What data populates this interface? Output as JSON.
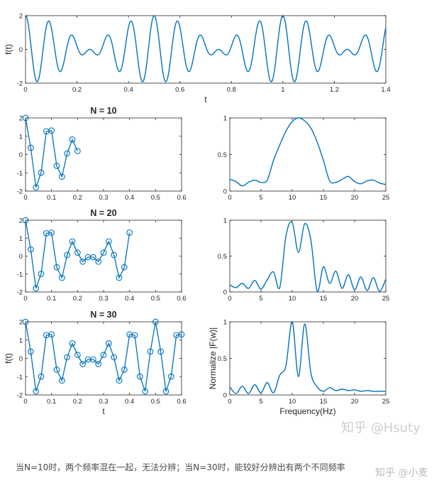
{
  "line_color": "#0072bd",
  "caption": "当N=10时，两个频率混在一起，无法分辨；当N=30时，能较好分辨出有两个不同频率",
  "watermarks": {
    "main": "知乎 @Hsuty",
    "corner": "知乎 @小麦"
  },
  "chart_data": [
    {
      "id": "signal",
      "type": "line",
      "xlabel": "t",
      "ylabel": "f(t)",
      "xlim": [
        0,
        1.4
      ],
      "ylim": [
        -2,
        2
      ],
      "xticks": [
        0,
        0.2,
        0.4,
        0.6,
        0.8,
        1,
        1.2,
        1.4
      ],
      "yticks": [
        -2,
        0,
        2
      ],
      "function": "cos(2*pi*10*t)+cos(2*pi*12*t)",
      "components_hz": [
        10,
        12
      ]
    },
    {
      "id": "samples-n10",
      "type": "line",
      "title": "N = 10",
      "xlim": [
        0,
        0.6
      ],
      "ylim": [
        -2,
        2
      ],
      "xticks": [
        0,
        0.1,
        0.2,
        0.3,
        0.4,
        0.5,
        0.6
      ],
      "yticks": [
        -2,
        -1,
        0,
        1,
        2
      ],
      "x": [
        0,
        0.02,
        0.04,
        0.06,
        0.08,
        0.1,
        0.12,
        0.14,
        0.16,
        0.18,
        0.2
      ],
      "y": [
        2.0,
        0.37,
        -1.8,
        -0.99,
        1.27,
        1.31,
        -0.62,
        -1.21,
        0.06,
        0.82,
        0.19
      ]
    },
    {
      "id": "spectrum-n10",
      "type": "line",
      "xlim": [
        0,
        25
      ],
      "ylim": [
        0,
        1
      ],
      "xticks": [
        0,
        5,
        10,
        15,
        20,
        25
      ],
      "yticks": [
        0,
        0.5,
        1
      ],
      "x": [
        0,
        1,
        2,
        3,
        4,
        5,
        6,
        7,
        8,
        9,
        10,
        11,
        12,
        13,
        14,
        15,
        16,
        17,
        18,
        19,
        20,
        21,
        22,
        23,
        24,
        25
      ],
      "y": [
        0.16,
        0.13,
        0.07,
        0.12,
        0.15,
        0.12,
        0.15,
        0.42,
        0.63,
        0.82,
        0.95,
        1.0,
        0.96,
        0.86,
        0.67,
        0.42,
        0.14,
        0.12,
        0.16,
        0.2,
        0.13,
        0.1,
        0.14,
        0.15,
        0.11,
        0.09
      ]
    },
    {
      "id": "samples-n20",
      "type": "line",
      "title": "N = 20",
      "xlim": [
        0,
        0.6
      ],
      "ylim": [
        -2,
        2
      ],
      "xticks": [
        0,
        0.1,
        0.2,
        0.3,
        0.4,
        0.5,
        0.6
      ],
      "yticks": [
        -2,
        -1,
        0,
        1,
        2
      ],
      "x": [
        0,
        0.02,
        0.04,
        0.06,
        0.08,
        0.1,
        0.12,
        0.14,
        0.16,
        0.18,
        0.2,
        0.22,
        0.24,
        0.26,
        0.28,
        0.3,
        0.32,
        0.34,
        0.36,
        0.38,
        0.4
      ],
      "y": [
        2.0,
        0.37,
        -1.8,
        -0.99,
        1.27,
        1.31,
        -0.62,
        -1.21,
        0.06,
        0.82,
        0.19,
        -0.31,
        -0.06,
        -0.06,
        -0.31,
        0.19,
        0.82,
        0.06,
        -1.21,
        -0.62,
        1.31
      ]
    },
    {
      "id": "spectrum-n20",
      "type": "line",
      "xlim": [
        0,
        25
      ],
      "ylim": [
        0,
        1
      ],
      "xticks": [
        0,
        5,
        10,
        15,
        20,
        25
      ],
      "yticks": [
        0,
        0.5,
        1
      ],
      "x": [
        0,
        1,
        2,
        3,
        4,
        5,
        6,
        7,
        8,
        9,
        10,
        11,
        12,
        13,
        14,
        15,
        16,
        17,
        18,
        19,
        20,
        21,
        22,
        23,
        24,
        25
      ],
      "y": [
        0.1,
        0.06,
        0.12,
        0.05,
        0.16,
        0.04,
        0.17,
        0.28,
        0.06,
        0.78,
        0.97,
        0.55,
        0.95,
        0.72,
        0.01,
        0.35,
        0.12,
        0.29,
        0.05,
        0.24,
        0.03,
        0.21,
        0.02,
        0.2,
        0.01,
        0.18
      ]
    },
    {
      "id": "samples-n30",
      "type": "line",
      "title": "N = 30",
      "xlabel": "t",
      "ylabel": "f(t)",
      "xlim": [
        0,
        0.6
      ],
      "ylim": [
        -2,
        2
      ],
      "xticks": [
        0,
        0.1,
        0.2,
        0.3,
        0.4,
        0.5,
        0.6
      ],
      "yticks": [
        -2,
        -1,
        0,
        1,
        2
      ],
      "x": [
        0,
        0.02,
        0.04,
        0.06,
        0.08,
        0.1,
        0.12,
        0.14,
        0.16,
        0.18,
        0.2,
        0.22,
        0.24,
        0.26,
        0.28,
        0.3,
        0.32,
        0.34,
        0.36,
        0.38,
        0.4,
        0.42,
        0.44,
        0.46,
        0.48,
        0.5,
        0.52,
        0.54,
        0.56,
        0.58,
        0.6
      ],
      "y": [
        2.0,
        0.37,
        -1.8,
        -0.99,
        1.27,
        1.31,
        -0.62,
        -1.21,
        0.06,
        0.82,
        0.19,
        -0.31,
        -0.06,
        -0.06,
        -0.31,
        0.19,
        0.82,
        0.06,
        -1.21,
        -0.62,
        1.31,
        1.27,
        -0.99,
        -1.8,
        0.37,
        2.0,
        0.37,
        -1.8,
        -0.99,
        1.27,
        1.31
      ]
    },
    {
      "id": "spectrum-n30",
      "type": "line",
      "xlabel": "Frequency(Hz)",
      "ylabel": "Normalize |F(w)|",
      "xlim": [
        0,
        25
      ],
      "ylim": [
        0,
        1
      ],
      "xticks": [
        0,
        5,
        10,
        15,
        20,
        25
      ],
      "yticks": [
        0,
        0.5,
        1
      ],
      "x": [
        0,
        1,
        2,
        3,
        4,
        5,
        6,
        7,
        8,
        9,
        10,
        11,
        12,
        13,
        14,
        15,
        16,
        17,
        18,
        19,
        20,
        21,
        22,
        23,
        24,
        25
      ],
      "y": [
        0.11,
        0.02,
        0.12,
        0.02,
        0.14,
        0.03,
        0.17,
        0.03,
        0.27,
        0.4,
        1.0,
        0.25,
        0.97,
        0.3,
        0.11,
        0.05,
        0.1,
        0.06,
        0.08,
        0.06,
        0.07,
        0.05,
        0.06,
        0.05,
        0.05,
        0.05
      ]
    }
  ]
}
